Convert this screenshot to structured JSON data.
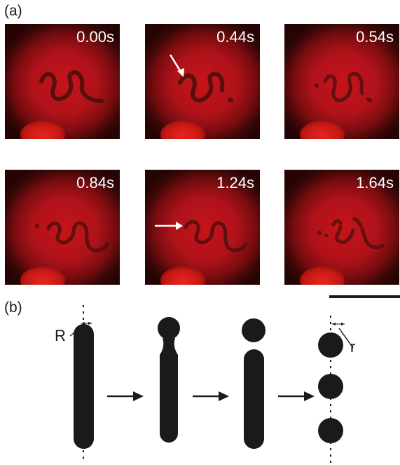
{
  "panels": {
    "a": {
      "label": "(a)"
    },
    "b": {
      "label": "(b)"
    }
  },
  "frames": [
    {
      "time": "0.00s",
      "arrow": false
    },
    {
      "time": "0.44s",
      "arrow": true
    },
    {
      "time": "0.54s",
      "arrow": false
    },
    {
      "time": "0.84s",
      "arrow": false
    },
    {
      "time": "1.24s",
      "arrow": true
    },
    {
      "time": "1.64s",
      "arrow": false
    }
  ],
  "schematic": {
    "radius_large_label": "R",
    "radius_small_label": "r"
  },
  "colors": {
    "fluorescence": "#c4141a",
    "background": "#240503",
    "ink": "#1a1a1a"
  }
}
